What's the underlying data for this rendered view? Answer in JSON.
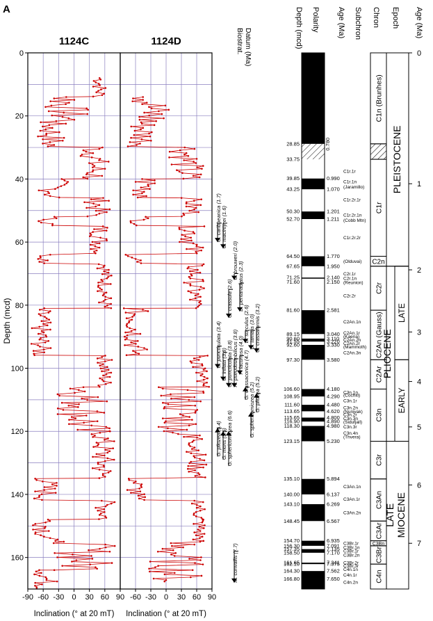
{
  "panel_letter": "A",
  "chart_data": [
    {
      "type": "line",
      "title": "1124C",
      "xlabel": "Inclination (° at 20 mT)",
      "ylabel": "Depth (mcd)",
      "xlim": [
        -90,
        90
      ],
      "ylim": [
        0,
        170
      ],
      "y_reversed": true,
      "x_ticks": [
        "-90",
        "-60",
        "-30",
        "0",
        "30",
        "60",
        "90"
      ],
      "y_ticks": [
        "0",
        "20",
        "40",
        "60",
        "80",
        "100",
        "120",
        "140",
        "160"
      ],
      "grid": true,
      "series_color": "#cc0000",
      "segments": [
        {
          "top": 8,
          "bottom": 14,
          "mean": 50,
          "amp": 15
        },
        {
          "top": 14,
          "bottom": 22,
          "mean": -15,
          "amp": 45
        },
        {
          "top": 22,
          "bottom": 30,
          "mean": -45,
          "amp": 30
        },
        {
          "top": 30,
          "bottom": 40,
          "mean": 40,
          "amp": 30
        },
        {
          "top": 40,
          "bottom": 46,
          "mean": -40,
          "amp": 30
        },
        {
          "top": 46,
          "bottom": 52,
          "mean": 45,
          "amp": 25
        },
        {
          "top": 52,
          "bottom": 55,
          "mean": -50,
          "amp": 20
        },
        {
          "top": 55,
          "bottom": 64,
          "mean": 50,
          "amp": 20
        },
        {
          "top": 64,
          "bottom": 67,
          "mean": -55,
          "amp": 15
        },
        {
          "top": 67,
          "bottom": 81,
          "mean": 60,
          "amp": 15
        },
        {
          "top": 81,
          "bottom": 96,
          "mean": -65,
          "amp": 20
        },
        {
          "top": 96,
          "bottom": 106,
          "mean": 60,
          "amp": 15
        },
        {
          "top": 106,
          "bottom": 120,
          "mean": 20,
          "amp": 55
        },
        {
          "top": 120,
          "bottom": 135,
          "mean": 55,
          "amp": 25
        },
        {
          "top": 135,
          "bottom": 142,
          "mean": -55,
          "amp": 25
        },
        {
          "top": 142,
          "bottom": 148,
          "mean": 60,
          "amp": 20
        },
        {
          "top": 148,
          "bottom": 155,
          "mean": -55,
          "amp": 25
        },
        {
          "top": 155,
          "bottom": 164,
          "mean": 20,
          "amp": 60
        },
        {
          "top": 164,
          "bottom": 170,
          "mean": -55,
          "amp": 25
        }
      ]
    },
    {
      "type": "line",
      "title": "1124D",
      "xlabel": "Inclination (° at 20 mT)",
      "xlim": [
        -90,
        90
      ],
      "ylim": [
        0,
        170
      ],
      "y_reversed": true,
      "x_ticks": [
        "-90",
        "-60",
        "-30",
        "0",
        "30",
        "60",
        "90"
      ],
      "grid": true,
      "series_color": "#cc0000",
      "segments": [
        {
          "top": 14,
          "bottom": 22,
          "mean": -30,
          "amp": 45
        },
        {
          "top": 22,
          "bottom": 30,
          "mean": -45,
          "amp": 30
        },
        {
          "top": 30,
          "bottom": 40,
          "mean": 40,
          "amp": 35
        },
        {
          "top": 40,
          "bottom": 46,
          "mean": -40,
          "amp": 30
        },
        {
          "top": 46,
          "bottom": 52,
          "mean": 50,
          "amp": 20
        },
        {
          "top": 52,
          "bottom": 55,
          "mean": -50,
          "amp": 20
        },
        {
          "top": 55,
          "bottom": 64,
          "mean": 50,
          "amp": 25
        },
        {
          "top": 64,
          "bottom": 67,
          "mean": -60,
          "amp": 20
        },
        {
          "top": 67,
          "bottom": 81,
          "mean": 55,
          "amp": 20
        },
        {
          "top": 81,
          "bottom": 96,
          "mean": -60,
          "amp": 25
        },
        {
          "top": 96,
          "bottom": 106,
          "mean": 65,
          "amp": 20
        },
        {
          "top": 106,
          "bottom": 122,
          "mean": 30,
          "amp": 45
        },
        {
          "top": 122,
          "bottom": 135,
          "mean": 60,
          "amp": 20
        },
        {
          "top": 135,
          "bottom": 142,
          "mean": -60,
          "amp": 20
        },
        {
          "top": 142,
          "bottom": 148,
          "mean": 65,
          "amp": 15
        },
        {
          "top": 148,
          "bottom": 155,
          "mean": 65,
          "amp": 15
        },
        {
          "top": 155,
          "bottom": 168,
          "mean": 20,
          "amp": 55
        }
      ]
    }
  ],
  "biostrat": {
    "title": "Biostrat.\nDatum (Ma)",
    "datums": [
      {
        "text": "G. caribbeanica (1.7)",
        "depth": 60,
        "pointer_top": 54,
        "arrow": "down"
      },
      {
        "text": "C. macintyrei (1.6)",
        "depth": 62,
        "pointer_top": 54,
        "arrow": "down"
      },
      {
        "text": "G. crassula (2.6)",
        "depth": 84,
        "pointer_top": 75,
        "arrow": "down"
      },
      {
        "text": "C. brouweri (2.0)",
        "depth": 72,
        "pointer_top": 70,
        "arrow": "down"
      },
      {
        "text": "D. pentaradiatus (2.3)",
        "depth": 82,
        "pointer_top": 73,
        "arrow": "down"
      },
      {
        "text": "D. surculus (2.6)",
        "depth": 92,
        "pointer_top": 88,
        "arrow": "down"
      },
      {
        "text": "D. tamalis (3.0)",
        "depth": 94,
        "pointer_top": 88,
        "arrow": "down"
      },
      {
        "text": "G. crassaformis (3.2)",
        "depth": 95,
        "pointer_top": 87,
        "arrow": "down"
      },
      {
        "text": "G. puncticulata (3.4)",
        "depth": 100,
        "pointer_top": 93,
        "arrow": "down"
      },
      {
        "text": "G. inflata (3.8)",
        "depth": 104,
        "pointer_top": 95,
        "arrow": "down"
      },
      {
        "text": "G. puncticulata (3.8)",
        "depth": 106,
        "pointer_top": 97,
        "arrow": "down"
      },
      {
        "text": "R. pseudoumbilicus (3.8)",
        "depth": 106,
        "pointer_top": 97,
        "arrow": "down"
      },
      {
        "text": "P. lacunosa (4.0)",
        "depth": 102,
        "pointer_top": 96,
        "arrow": "down"
      },
      {
        "text": "G. crassaconica (4.7)",
        "depth": 110,
        "pointer_top": 106,
        "arrow": "up"
      },
      {
        "text": "G. sphericomiozea (5.2)",
        "depth": 122,
        "pointer_top": 114,
        "arrow": "up"
      },
      {
        "text": "G. pliozea (5.2)",
        "depth": 114,
        "pointer_top": 108,
        "arrow": "up"
      },
      {
        "text": "G. pliozea (5.4)",
        "depth": 128,
        "pointer_top": 119,
        "arrow": "up"
      },
      {
        "text": "G. mons (5.5)",
        "depth": 129,
        "pointer_top": 120,
        "arrow": "up"
      },
      {
        "text": "G. sphericomiozea (6.6)",
        "depth": 131,
        "pointer_top": 120,
        "arrow": "up"
      },
      {
        "text": "M. convallis (7.7)",
        "depth": 168,
        "pointer_top": 158,
        "arrow": "down"
      }
    ]
  },
  "stratigraphy": {
    "header_depth": "Depth (mcd)",
    "header_polarity": "Polarity",
    "header_age": "Age (Ma)",
    "header_subchron": "Subchron",
    "polarity_blocks": [
      {
        "top": 0,
        "bottom": 28.85,
        "normal": true
      },
      {
        "top": 28.85,
        "bottom": 33.75,
        "hatched": true
      },
      {
        "top": 39.85,
        "bottom": 43.25,
        "normal": true
      },
      {
        "top": 50.3,
        "bottom": 52.7,
        "normal": true
      },
      {
        "top": 64.5,
        "bottom": 67.65,
        "normal": true
      },
      {
        "top": 71.25,
        "bottom": 71.6,
        "normal": true
      },
      {
        "top": 81.6,
        "bottom": 89.15,
        "normal": true
      },
      {
        "top": 90.6,
        "bottom": 91.55,
        "normal": true
      },
      {
        "top": 92.6,
        "bottom": 97.3,
        "normal": true
      },
      {
        "top": 106.6,
        "bottom": 108.95,
        "normal": true
      },
      {
        "top": 111.6,
        "bottom": 113.65,
        "normal": true
      },
      {
        "top": 115.65,
        "bottom": 116.9,
        "normal": true
      },
      {
        "top": 118.3,
        "bottom": 123.15,
        "normal": true
      },
      {
        "top": 135.1,
        "bottom": 140.0,
        "normal": true
      },
      {
        "top": 143.1,
        "bottom": 148.45,
        "normal": true
      },
      {
        "top": 154.7,
        "bottom": 156.3,
        "normal": true
      },
      {
        "top": 157.35,
        "bottom": 158.5,
        "normal": true
      },
      {
        "top": 161.65,
        "bottom": 162.1,
        "normal": true
      },
      {
        "top": 164.3,
        "bottom": 166.8,
        "normal": true
      },
      {
        "top": 166.8,
        "bottom": 170,
        "normal": true
      }
    ],
    "depth_labels": [
      {
        "d": 28.85,
        "t": "28.85"
      },
      {
        "d": 33.75,
        "t": "33.75"
      },
      {
        "d": 39.85,
        "t": "39.85"
      },
      {
        "d": 43.25,
        "t": "43.25"
      },
      {
        "d": 50.3,
        "t": "50.30"
      },
      {
        "d": 52.7,
        "t": "52.70"
      },
      {
        "d": 64.5,
        "t": "64.50"
      },
      {
        "d": 67.65,
        "t": "67.65"
      },
      {
        "d": 71.25,
        "t": "71.25"
      },
      {
        "d": 72.6,
        "t": "71.60"
      },
      {
        "d": 81.6,
        "t": "81.60"
      },
      {
        "d": 89.15,
        "t": "89.15"
      },
      {
        "d": 90.6,
        "t": "90.60"
      },
      {
        "d": 91.55,
        "t": "91.55"
      },
      {
        "d": 92.6,
        "t": "92.60"
      },
      {
        "d": 97.3,
        "t": "97.30"
      },
      {
        "d": 106.6,
        "t": "106.60"
      },
      {
        "d": 108.95,
        "t": "108.95"
      },
      {
        "d": 111.6,
        "t": "111.60"
      },
      {
        "d": 113.65,
        "t": "113.65"
      },
      {
        "d": 115.65,
        "t": "115.65"
      },
      {
        "d": 116.9,
        "t": "116.90"
      },
      {
        "d": 118.3,
        "t": "118.30"
      },
      {
        "d": 123.15,
        "t": "123.15"
      },
      {
        "d": 135.1,
        "t": "135.10"
      },
      {
        "d": 140.0,
        "t": "140.00"
      },
      {
        "d": 143.1,
        "t": "143.10"
      },
      {
        "d": 148.45,
        "t": "148.45"
      },
      {
        "d": 154.7,
        "t": "154.70"
      },
      {
        "d": 156.3,
        "t": "156.30"
      },
      {
        "d": 157.35,
        "t": "157.35"
      },
      {
        "d": 158.5,
        "t": "158.50"
      },
      {
        "d": 161.65,
        "t": "161.65"
      },
      {
        "d": 162.1,
        "t": "162.10"
      },
      {
        "d": 164.3,
        "t": "164.30"
      },
      {
        "d": 166.8,
        "t": "166.80"
      }
    ],
    "age_labels": [
      {
        "d": 31,
        "t": "0.780",
        "rot": true
      },
      {
        "d": 39.85,
        "t": "0.990"
      },
      {
        "d": 43.25,
        "t": "1.070"
      },
      {
        "d": 50.3,
        "t": "1.201"
      },
      {
        "d": 52.7,
        "t": "1.211"
      },
      {
        "d": 64.5,
        "t": "1.770"
      },
      {
        "d": 67.65,
        "t": "1.950"
      },
      {
        "d": 71.25,
        "t": "2.140"
      },
      {
        "d": 72.6,
        "t": "2.150"
      },
      {
        "d": 81.6,
        "t": "2.581"
      },
      {
        "d": 89.15,
        "t": "3.040"
      },
      {
        "d": 90.6,
        "t": "3.110"
      },
      {
        "d": 91.55,
        "t": "3.220"
      },
      {
        "d": 92.6,
        "t": "3.330"
      },
      {
        "d": 97.3,
        "t": "3.580"
      },
      {
        "d": 106.6,
        "t": "4.180"
      },
      {
        "d": 108.95,
        "t": "4.290"
      },
      {
        "d": 111.6,
        "t": "4.480"
      },
      {
        "d": 113.65,
        "t": "4.620"
      },
      {
        "d": 115.65,
        "t": "4.800"
      },
      {
        "d": 116.9,
        "t": "4.890"
      },
      {
        "d": 118.3,
        "t": "4.980"
      },
      {
        "d": 123.15,
        "t": "5.230"
      },
      {
        "d": 135.1,
        "t": "5.894"
      },
      {
        "d": 140.0,
        "t": "6.137"
      },
      {
        "d": 143.1,
        "t": "6.269"
      },
      {
        "d": 148.45,
        "t": "6.567"
      },
      {
        "d": 154.7,
        "t": "6.935"
      },
      {
        "d": 156.3,
        "t": "7.091"
      },
      {
        "d": 157.35,
        "t": "7.135"
      },
      {
        "d": 158.5,
        "t": "7.170"
      },
      {
        "d": 161.65,
        "t": "7.341"
      },
      {
        "d": 162.1,
        "t": "7.375"
      },
      {
        "d": 164.3,
        "t": "7.562"
      },
      {
        "d": 166.8,
        "t": "7.650"
      }
    ],
    "subchron_labels": [
      {
        "d": 37.5,
        "t": "C1r.1r"
      },
      {
        "d": 40.8,
        "t": "C1r.1n"
      },
      {
        "d": 42.4,
        "t": "(Jaramillo)"
      },
      {
        "d": 46.5,
        "t": "C1r.2r.1r"
      },
      {
        "d": 51.4,
        "t": "C1r.2r.1n"
      },
      {
        "d": 53.0,
        "t": "(Cobb Mtn)"
      },
      {
        "d": 58.5,
        "t": "C1r.2r.2r"
      },
      {
        "d": 66.0,
        "t": "(Olduvai)"
      },
      {
        "d": 70.0,
        "t": "C2r.1r"
      },
      {
        "d": 71.4,
        "t": "C2r.1n"
      },
      {
        "d": 72.8,
        "t": "(Reunion)"
      },
      {
        "d": 77.0,
        "t": "C2r.2r"
      },
      {
        "d": 85.2,
        "t": "C2An.1n"
      },
      {
        "d": 88.7,
        "t": "C2An.1r"
      },
      {
        "d": 89.9,
        "t": "(Kaena)"
      },
      {
        "d": 91.0,
        "t": "C2An.2n"
      },
      {
        "d": 92.1,
        "t": "C2An.2r"
      },
      {
        "d": 93.2,
        "t": "(Mammoth)"
      },
      {
        "d": 95.0,
        "t": "C2An.3n"
      },
      {
        "d": 107.6,
        "t": "C3n.1n"
      },
      {
        "d": 108.5,
        "t": "(Cochiti)"
      },
      {
        "d": 110.2,
        "t": "C3n.1r"
      },
      {
        "d": 112.5,
        "t": "C3n.2n"
      },
      {
        "d": 113.7,
        "t": "(Nunivak)"
      },
      {
        "d": 114.7,
        "t": "C3n.2r"
      },
      {
        "d": 115.9,
        "t": "C3n.3n"
      },
      {
        "d": 117.0,
        "t": "(Sidufjall)"
      },
      {
        "d": 118.5,
        "t": "C3n.3r"
      },
      {
        "d": 120.5,
        "t": "C3n.4n"
      },
      {
        "d": 121.7,
        "t": "(Thvera)"
      },
      {
        "d": 137.5,
        "t": "C3An.1n"
      },
      {
        "d": 141.5,
        "t": "C3An.1r"
      },
      {
        "d": 145.8,
        "t": "C3An.2n"
      },
      {
        "d": 155.5,
        "t": "C3Br.1r"
      },
      {
        "d": 156.8,
        "t": "C3Br.1n"
      },
      {
        "d": 157.9,
        "t": "C3Br.1r"
      },
      {
        "d": 159.2,
        "t": "C3Br.2n"
      },
      {
        "d": 161.6,
        "t": "C3Br.2r"
      },
      {
        "d": 162.6,
        "t": "C3Br.3r"
      },
      {
        "d": 163.7,
        "t": "C4n.1n"
      },
      {
        "d": 165.5,
        "t": "C4n.1r"
      },
      {
        "d": 167.8,
        "t": "C4n.2n"
      }
    ]
  },
  "chron_column": {
    "header": "Chron",
    "items": [
      {
        "top": 0,
        "bottom": 28.85,
        "label": "C1n (Brunhes)"
      },
      {
        "top": 33.75,
        "bottom": 64.5,
        "label": "C1r"
      },
      {
        "top": 64.5,
        "bottom": 67.65,
        "label": "C2n",
        "horizontal": true
      },
      {
        "top": 67.65,
        "bottom": 81.6,
        "label": "C2r"
      },
      {
        "top": 81.6,
        "bottom": 97.3,
        "label": "C2An (Gauss)"
      },
      {
        "top": 97.3,
        "bottom": 106.6,
        "label": "C2Ar"
      },
      {
        "top": 106.6,
        "bottom": 123.15,
        "label": "C3n"
      },
      {
        "top": 123.15,
        "bottom": 135.1,
        "label": "C3r"
      },
      {
        "top": 135.1,
        "bottom": 148.45,
        "label": "C3An"
      },
      {
        "top": 148.45,
        "bottom": 154.7,
        "label": "C3Ar"
      },
      {
        "top": 154.7,
        "bottom": 156.3,
        "label": "C3Bn",
        "small": true
      },
      {
        "top": 156.3,
        "bottom": 162.1,
        "label": "C3Br"
      },
      {
        "top": 162.1,
        "bottom": 170,
        "label": "C4n"
      }
    ]
  },
  "epoch_column": {
    "header": "Epoch",
    "blocks": [
      {
        "top": 0,
        "bottom": 67.65,
        "label": "PLEISTOCENE",
        "big": true
      },
      {
        "top": 67.65,
        "bottom": 123.15,
        "label": "PLIOCENE",
        "big": true
      },
      {
        "top": 123.15,
        "bottom": 170,
        "label": "LATE\nMIOCENE",
        "big": true
      }
    ],
    "sub_blocks": [
      {
        "top": 67.65,
        "bottom": 97.3,
        "label": "LATE"
      },
      {
        "top": 97.3,
        "bottom": 123.15,
        "label": "EARLY"
      }
    ]
  },
  "age_axis": {
    "header": "Age (Ma)",
    "ticks": [
      {
        "age": "0",
        "d": 0
      },
      {
        "age": "1",
        "d": 41.5
      },
      {
        "age": "2",
        "d": 68.8
      },
      {
        "age": "3",
        "d": 88.5
      },
      {
        "age": "4",
        "d": 104.2
      },
      {
        "age": "5",
        "d": 118.6
      },
      {
        "age": "6",
        "d": 137.0
      },
      {
        "age": "7",
        "d": 155.5
      }
    ]
  }
}
